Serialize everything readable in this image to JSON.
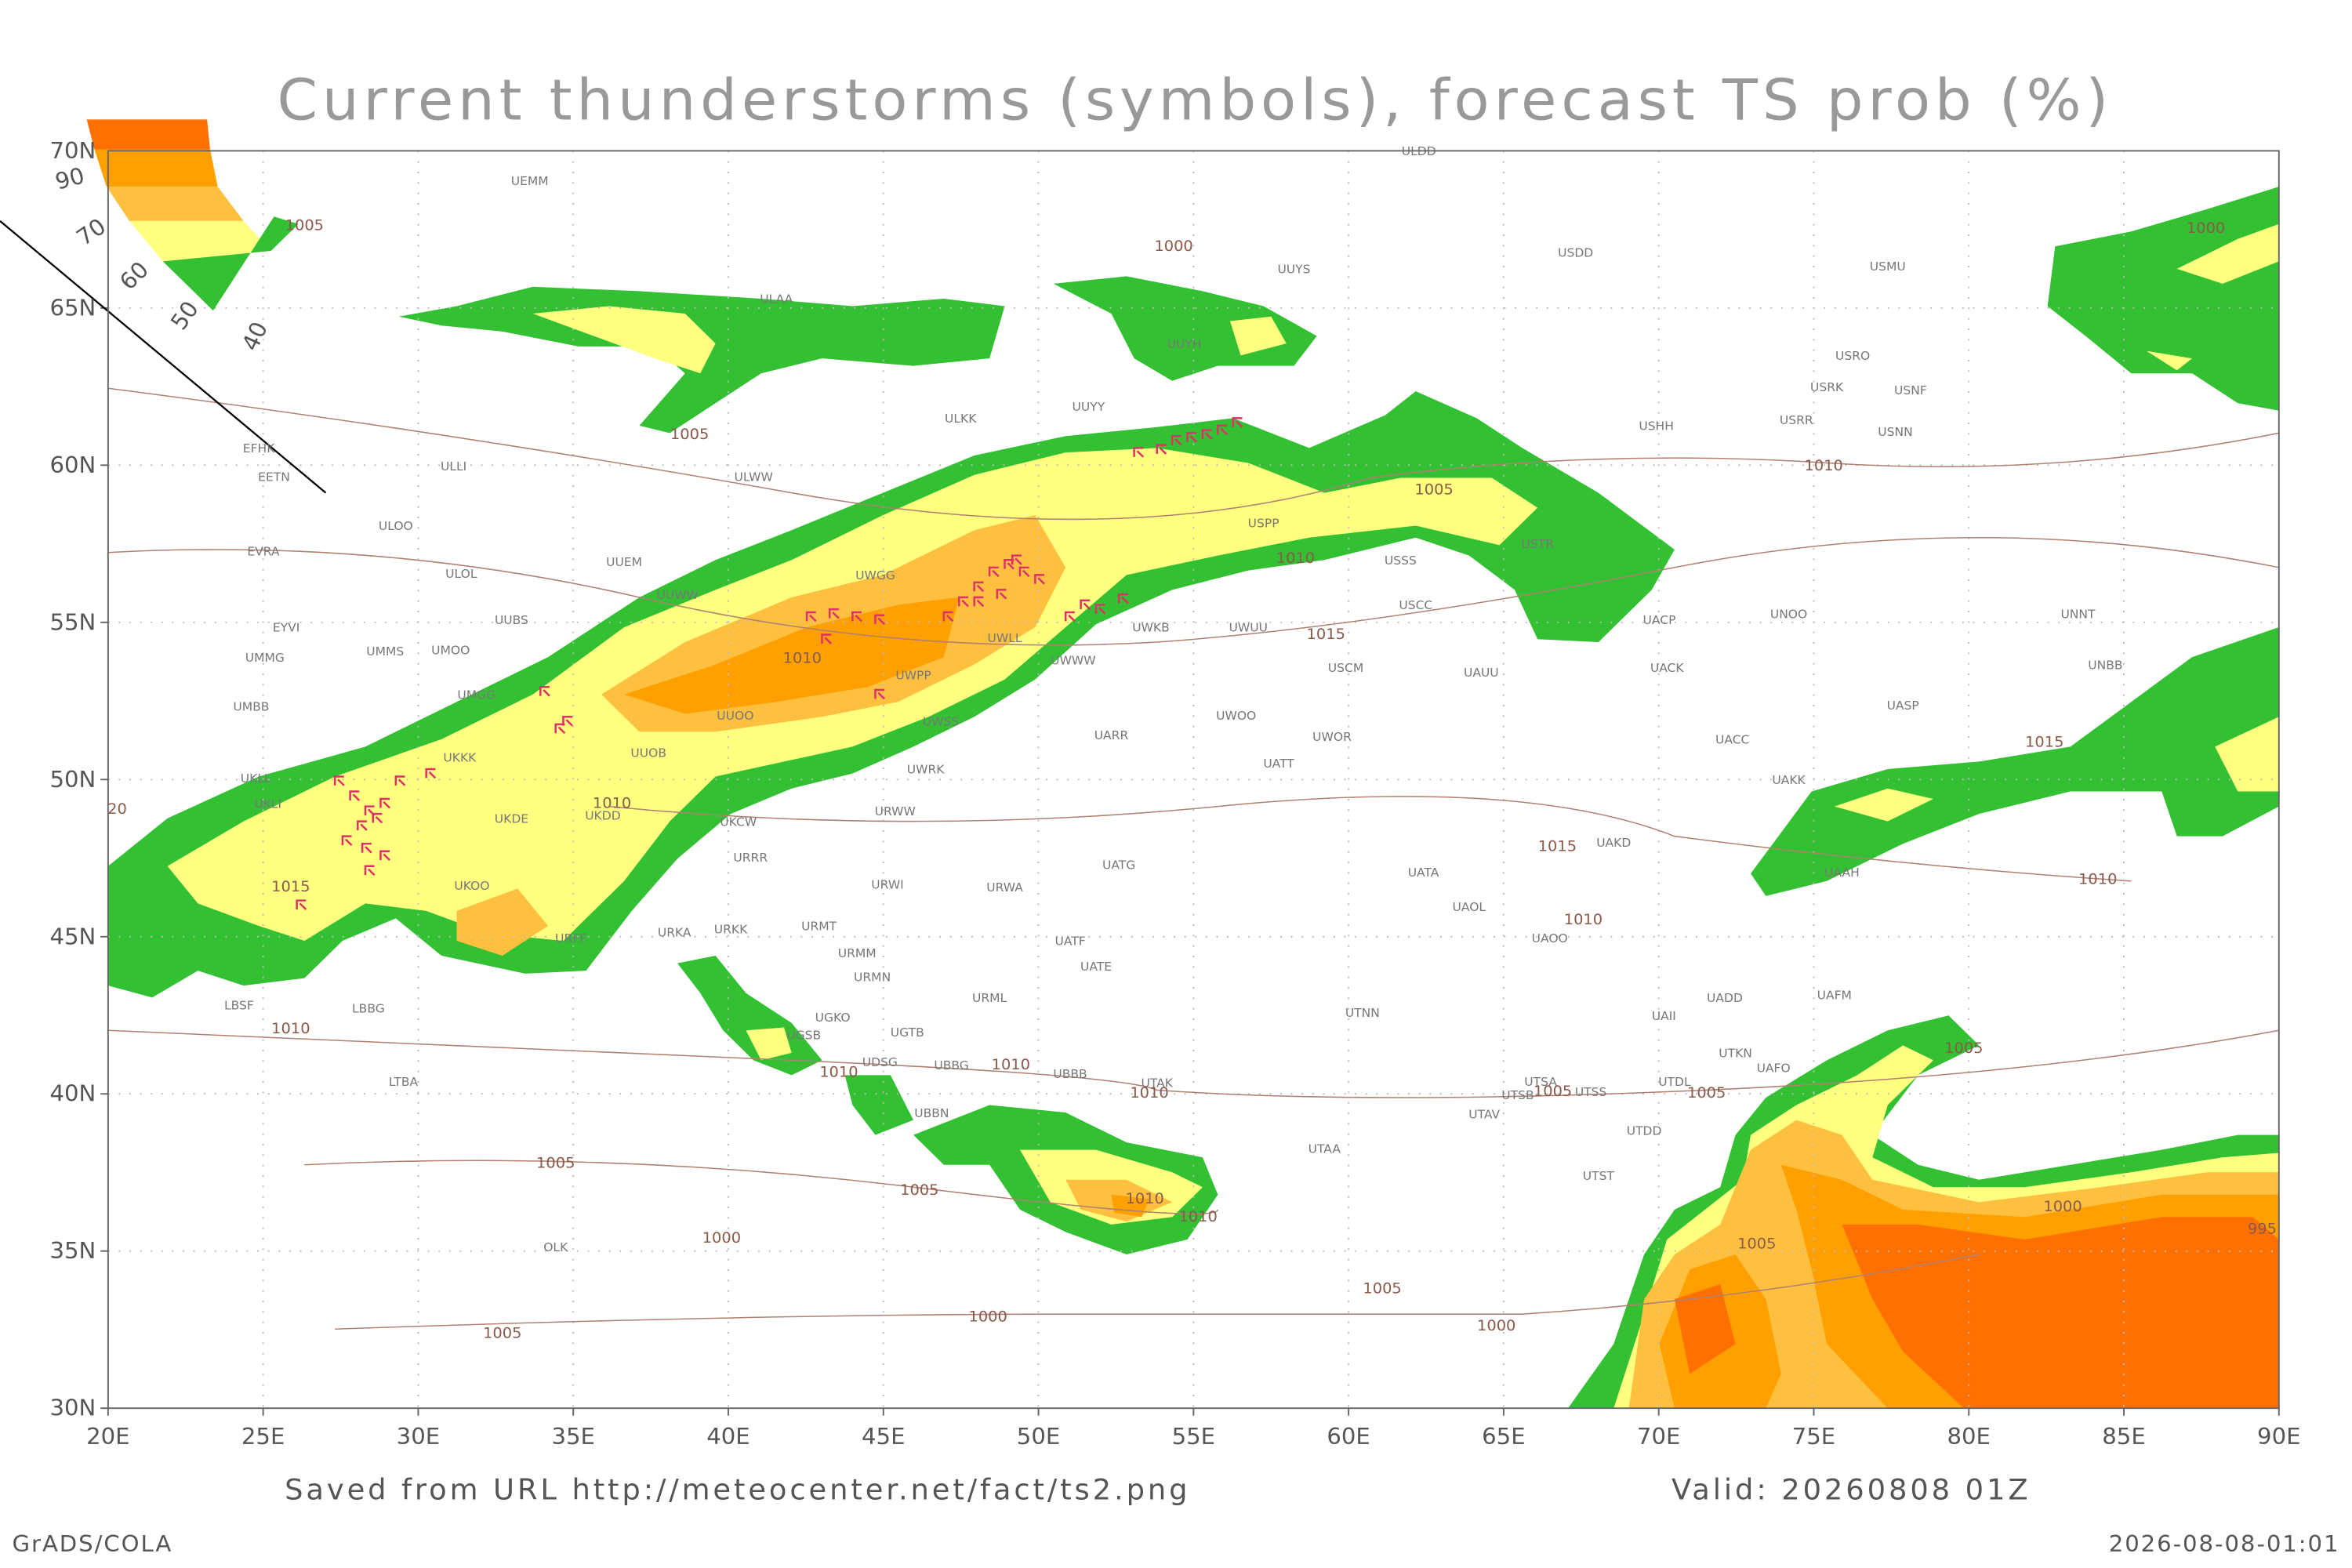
{
  "title": "Current thunderstorms (symbols), forecast TS prob (%)",
  "footer": {
    "source": "Saved from URL http://meteocenter.net/fact/ts2.png",
    "valid": "Valid: 20260808 01Z",
    "software": "GrADS/COLA",
    "timestamp": "2026-08-08-01:01"
  },
  "axes": {
    "lat_labels": [
      "70N",
      "65N",
      "60N",
      "55N",
      "50N",
      "45N",
      "40N",
      "35N",
      "30N"
    ],
    "lon_labels": [
      "20E",
      "25E",
      "30E",
      "35E",
      "40E",
      "45E",
      "50E",
      "55E",
      "60E",
      "65E",
      "70E",
      "75E",
      "80E",
      "85E",
      "90E"
    ]
  },
  "legend": {
    "labels": [
      "90",
      "70",
      "60",
      "50",
      "40"
    ]
  },
  "stations": [
    "ULDD",
    "UEMM",
    "USDD",
    "UUYS",
    "USMU",
    "ULAA",
    "UUYH",
    "USRO",
    "USRK",
    "USNF",
    "ULKK",
    "UUYY",
    "USHH",
    "USRR",
    "USNN",
    "EFHK",
    "EETN",
    "ULLI",
    "ULWW",
    "ULOO",
    "USPP",
    "EVRA",
    "UUEM",
    "ULOL",
    "USSS",
    "USTR",
    "UWGG",
    "UUWW",
    "USCC",
    "UACP",
    "UNOO",
    "UNNT",
    "EYVI",
    "UUBS",
    "UWKB",
    "UWUU",
    "UWLL",
    "UMMG",
    "UMMS",
    "UMOO",
    "USCM",
    "UAUU",
    "UACK",
    "UNBB",
    "UWPP",
    "UWWW",
    "UMBB",
    "UMGG",
    "UWOO",
    "UASP",
    "UUOO",
    "UWSS",
    "UARR",
    "UWOR",
    "UACC",
    "UKKK",
    "UUOB",
    "UATT",
    "UWRK",
    "UKLL",
    "UAKK",
    "UKLI",
    "UKDD",
    "UKDE",
    "URWW",
    "UKCW",
    "URRR",
    "UATG",
    "UATA",
    "UAKD",
    "UAAH",
    "UKOO",
    "URWI",
    "URWA",
    "UAOL",
    "URFF",
    "URKA",
    "URKK",
    "URMT",
    "UATF",
    "UAOO",
    "URMM",
    "UATE",
    "URMN",
    "LBSF",
    "URML",
    "UADD",
    "UAFM",
    "LBBG",
    "UGKO",
    "UTNN",
    "UAII",
    "UGSB",
    "UGTB",
    "UTDL",
    "UAFO",
    "UDSG",
    "UBBG",
    "UBBB",
    "UTKN",
    "LTBA",
    "UTAK",
    "UTSA",
    "UTSB",
    "UTSS",
    "UBBN",
    "UTAV",
    "UTDD",
    "UTAA",
    "UTST",
    "OLK"
  ],
  "isobar_labels": [
    "1005",
    "1000",
    "1005",
    "1005",
    "1010",
    "1010",
    "1015",
    "1010",
    "1010",
    "1015",
    "1015",
    "1015",
    "1010",
    "1010",
    "1010",
    "1010",
    "1010",
    "1010",
    "1010",
    "1010",
    "1005",
    "1005",
    "1000",
    "1005",
    "1000",
    "1005",
    "1000",
    "1005",
    "1000",
    "1005",
    "1005",
    "1005",
    "995",
    "1000",
    "20"
  ]
}
